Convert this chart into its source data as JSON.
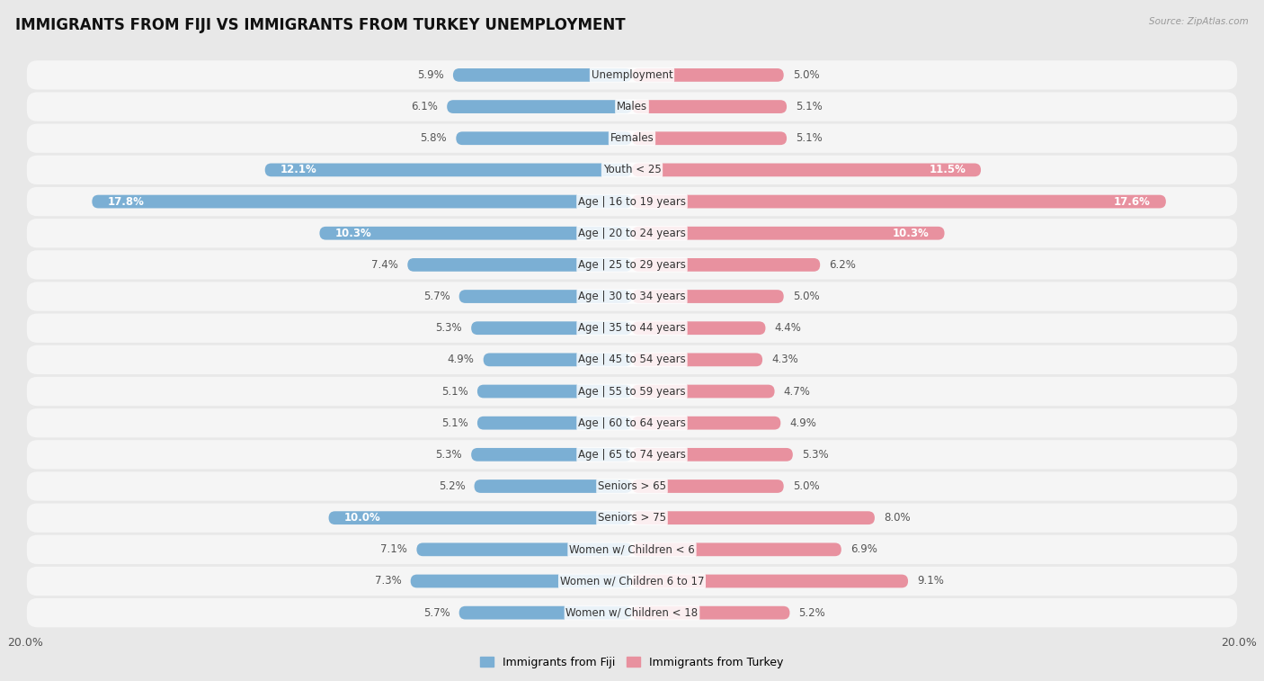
{
  "title": "IMMIGRANTS FROM FIJI VS IMMIGRANTS FROM TURKEY UNEMPLOYMENT",
  "source": "Source: ZipAtlas.com",
  "categories": [
    "Unemployment",
    "Males",
    "Females",
    "Youth < 25",
    "Age | 16 to 19 years",
    "Age | 20 to 24 years",
    "Age | 25 to 29 years",
    "Age | 30 to 34 years",
    "Age | 35 to 44 years",
    "Age | 45 to 54 years",
    "Age | 55 to 59 years",
    "Age | 60 to 64 years",
    "Age | 65 to 74 years",
    "Seniors > 65",
    "Seniors > 75",
    "Women w/ Children < 6",
    "Women w/ Children 6 to 17",
    "Women w/ Children < 18"
  ],
  "fiji_values": [
    5.9,
    6.1,
    5.8,
    12.1,
    17.8,
    10.3,
    7.4,
    5.7,
    5.3,
    4.9,
    5.1,
    5.1,
    5.3,
    5.2,
    10.0,
    7.1,
    7.3,
    5.7
  ],
  "turkey_values": [
    5.0,
    5.1,
    5.1,
    11.5,
    17.6,
    10.3,
    6.2,
    5.0,
    4.4,
    4.3,
    4.7,
    4.9,
    5.3,
    5.0,
    8.0,
    6.9,
    9.1,
    5.2
  ],
  "fiji_color": "#7bafd4",
  "turkey_color": "#e8919f",
  "fiji_label": "Immigrants from Fiji",
  "turkey_label": "Immigrants from Turkey",
  "xlim": 20.0,
  "background_color": "#e8e8e8",
  "row_bg_color": "#f5f5f5",
  "title_fontsize": 12,
  "cat_fontsize": 8.5,
  "value_fontsize": 8.5,
  "axis_fontsize": 9,
  "legend_fontsize": 9
}
